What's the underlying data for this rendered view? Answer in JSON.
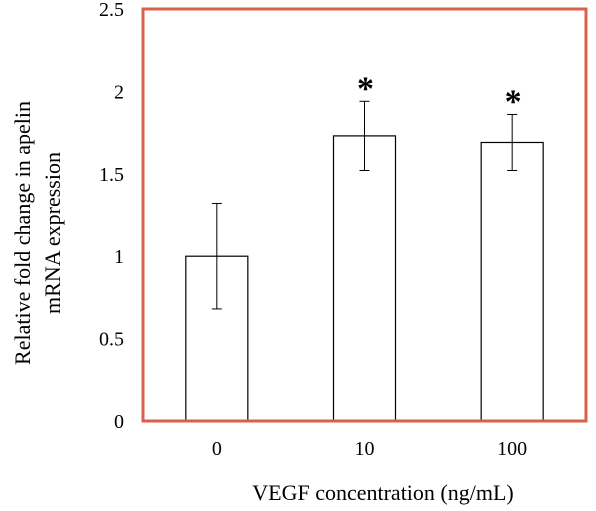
{
  "chart_data": {
    "type": "bar",
    "title": "",
    "xlabel": "VEGF concentration (ng/mL)",
    "ylabel_lines": [
      "Relative fold change in apelin",
      "mRNA expression"
    ],
    "categories": [
      "0",
      "10",
      "100"
    ],
    "values": [
      1.0,
      1.73,
      1.69
    ],
    "error_bars": [
      0.32,
      0.21,
      0.17
    ],
    "significance": [
      "",
      "*",
      "*"
    ],
    "ylim": [
      0,
      2.5
    ],
    "yticks": [
      0,
      0.5,
      1,
      1.5,
      2,
      2.5
    ],
    "ytick_labels": [
      "0",
      "0.5",
      "1",
      "1.5",
      "2",
      "2.5"
    ],
    "grid": false,
    "legend": "none",
    "colors": {
      "frame": "#d9604a",
      "bar_fill": "#ffffff",
      "bar_stroke": "#000000",
      "error_bar": "#000000"
    }
  }
}
